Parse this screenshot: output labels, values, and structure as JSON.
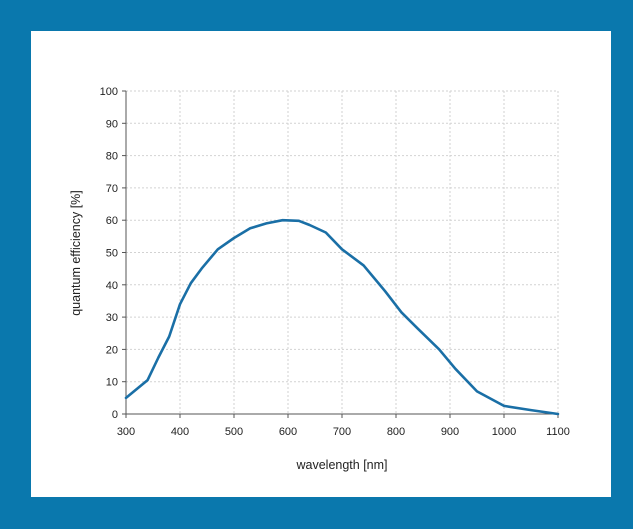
{
  "chart_data": {
    "type": "line",
    "xlabel": "wavelength [nm]",
    "ylabel": "quantum efficiency [%]",
    "xlim": [
      300,
      1100
    ],
    "ylim": [
      0,
      100
    ],
    "xticks": [
      300,
      400,
      500,
      600,
      700,
      800,
      900,
      1000,
      1100
    ],
    "yticks": [
      0,
      10,
      20,
      30,
      40,
      50,
      60,
      70,
      80,
      90,
      100
    ],
    "grid": true,
    "line_color": "#1a6fa6",
    "series": [
      {
        "x": [
          300,
          340,
          360,
          380,
          400,
          420,
          440,
          470,
          500,
          530,
          560,
          590,
          620,
          640,
          670,
          700,
          740,
          780,
          810,
          840,
          880,
          910,
          950,
          1000,
          1050,
          1100
        ],
        "values": [
          5,
          10.5,
          17.5,
          24,
          34,
          40.5,
          45,
          51,
          54.5,
          57.5,
          59,
          60,
          59.8,
          58.5,
          56.2,
          51,
          46,
          38,
          31.5,
          26.5,
          20,
          14,
          7,
          2.5,
          1.2,
          0
        ]
      }
    ]
  }
}
